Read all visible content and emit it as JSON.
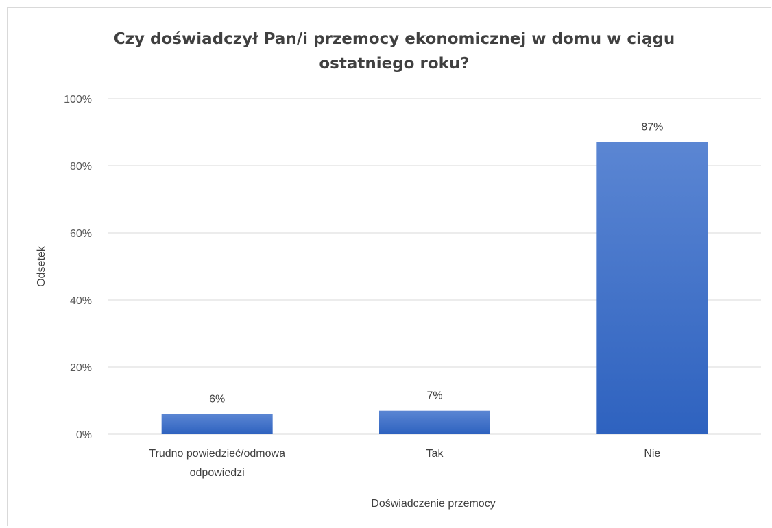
{
  "chart_data": {
    "type": "bar",
    "title_lines": [
      "Czy doświadczył Pan/i przemocy ekonomicznej w domu w ciągu",
      "ostatniego roku?"
    ],
    "xlabel": "Doświadczenie przemocy",
    "ylabel": "Odsetek",
    "categories": [
      [
        "Trudno powiedzieć/odmowa",
        "odpowiedzi"
      ],
      [
        "Tak"
      ],
      [
        "Nie"
      ]
    ],
    "values": [
      6,
      7,
      87
    ],
    "data_labels": [
      "6%",
      "7%",
      "87%"
    ],
    "ylim": [
      0,
      100
    ],
    "yticks": [
      0,
      20,
      40,
      60,
      80,
      100
    ],
    "ytick_labels": [
      "0%",
      "20%",
      "40%",
      "60%",
      "80%",
      "100%"
    ],
    "grid": true,
    "legend": "none",
    "colors": {
      "bar_top": "#5b86d3",
      "bar_bottom": "#2e62bf",
      "grid": "#d9d9d9"
    }
  }
}
